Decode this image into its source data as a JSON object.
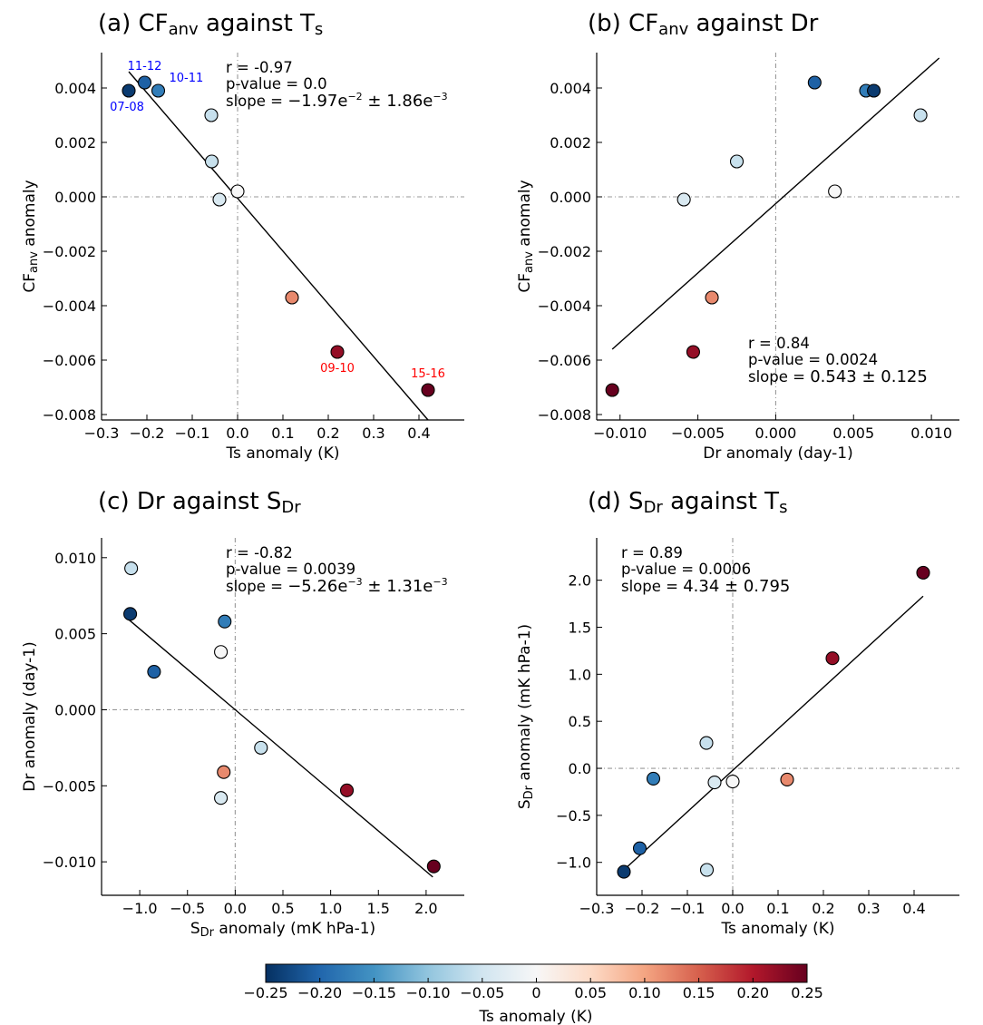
{
  "colorbar": {
    "label": "Ts anomaly (K)",
    "ticks": [
      "−0.25",
      "−0.20",
      "−0.15",
      "−0.10",
      "−0.05",
      "0",
      "0.05",
      "0.10",
      "0.15",
      "0.20",
      "0.25"
    ],
    "range": [
      -0.25,
      0.25
    ],
    "colormap": [
      "#053061",
      "#2166ac",
      "#4393c3",
      "#92c5de",
      "#d1e5f0",
      "#f7f7f7",
      "#fddbc7",
      "#f4a582",
      "#d6604d",
      "#b2182b",
      "#67001f"
    ]
  },
  "chart_data": [
    {
      "type": "scatter",
      "title_parts": [
        "(a) CF",
        "anv",
        " against T",
        "s"
      ],
      "xlabel_parts": [
        "Ts anomaly (K)"
      ],
      "ylabel_parts": [
        "CF",
        "anv",
        " anomaly"
      ],
      "xlim": [
        -0.3,
        0.5
      ],
      "ylim": [
        -0.0082,
        0.0053
      ],
      "xticks": [
        -0.3,
        -0.2,
        -0.1,
        0.0,
        0.1,
        0.2,
        0.3,
        0.4
      ],
      "xtick_labels": [
        "−0.3",
        "−0.2",
        "−0.1",
        "0.0",
        "0.1",
        "0.2",
        "0.3",
        "0.4"
      ],
      "yticks": [
        -0.008,
        -0.006,
        -0.004,
        -0.002,
        0.0,
        0.002,
        0.004
      ],
      "ytick_labels": [
        "−0.008",
        "−0.006",
        "−0.004",
        "−0.002",
        "0.000",
        "0.002",
        "0.004"
      ],
      "stats": {
        "r": "r = -0.97",
        "p": "p-value = 0.0",
        "slope_label": "slope = ",
        "slope_mantissa": "−1.97e",
        "slope_exp": "−2",
        "slope_err_mantissa": " ± 1.86e",
        "slope_err_exp": "−3",
        "position": "top-center"
      },
      "fit": {
        "x": [
          -0.24,
          0.42
        ],
        "y": [
          0.0046,
          -0.0082
        ]
      },
      "points": [
        {
          "x": -0.24,
          "y": 0.0039,
          "c": -0.24,
          "label": "07-08",
          "label_color": "#0000ff",
          "label_pos": "below-left"
        },
        {
          "x": -0.205,
          "y": 0.0042,
          "c": -0.205,
          "label": "11-12",
          "label_color": "#0000ff",
          "label_pos": "above"
        },
        {
          "x": -0.175,
          "y": 0.0039,
          "c": -0.175,
          "label": "10-11",
          "label_color": "#0000ff",
          "label_pos": "above-right"
        },
        {
          "x": -0.058,
          "y": 0.003,
          "c": -0.058
        },
        {
          "x": -0.057,
          "y": 0.0013,
          "c": -0.057
        },
        {
          "x": -0.04,
          "y": -0.0001,
          "c": -0.04
        },
        {
          "x": 0.0,
          "y": 0.0002,
          "c": 0.0
        },
        {
          "x": 0.12,
          "y": -0.0037,
          "c": 0.12
        },
        {
          "x": 0.22,
          "y": -0.0057,
          "c": 0.22,
          "label": "09-10",
          "label_color": "#ff0000",
          "label_pos": "below"
        },
        {
          "x": 0.42,
          "y": -0.0071,
          "c": 0.42,
          "label": "15-16",
          "label_color": "#ff0000",
          "label_pos": "above"
        }
      ]
    },
    {
      "type": "scatter",
      "title_parts": [
        "(b) CF",
        "anv",
        " against Dr"
      ],
      "xlabel_parts": [
        "Dr anomaly (day-1)"
      ],
      "ylabel_parts": [
        "CF",
        "anv",
        " anomaly"
      ],
      "xlim": [
        -0.0115,
        0.0118
      ],
      "ylim": [
        -0.0082,
        0.0053
      ],
      "xticks": [
        -0.01,
        -0.005,
        0.0,
        0.005,
        0.01
      ],
      "xtick_labels": [
        "−0.010",
        "−0.005",
        "0.000",
        "0.005",
        "0.010"
      ],
      "yticks": [
        -0.008,
        -0.006,
        -0.004,
        -0.002,
        0.0,
        0.002,
        0.004
      ],
      "ytick_labels": [
        "−0.008",
        "−0.006",
        "−0.004",
        "−0.002",
        "0.000",
        "0.002",
        "0.004"
      ],
      "stats": {
        "r": "r = 0.84",
        "p": "p-value = 0.0024",
        "slope_label": "slope = ",
        "slope_value": "0.543 ± 0.125",
        "position": "bottom-right"
      },
      "fit": {
        "x": [
          -0.0105,
          0.0105
        ],
        "y": [
          -0.0056,
          0.0051
        ]
      },
      "points": [
        {
          "x": -0.0105,
          "y": -0.0071,
          "c": 0.42
        },
        {
          "x": -0.0059,
          "y": -0.0001,
          "c": -0.04
        },
        {
          "x": -0.0053,
          "y": -0.0057,
          "c": 0.22
        },
        {
          "x": -0.0041,
          "y": -0.0037,
          "c": 0.12
        },
        {
          "x": -0.0025,
          "y": 0.0013,
          "c": -0.057
        },
        {
          "x": 0.0025,
          "y": 0.0042,
          "c": -0.205
        },
        {
          "x": 0.0038,
          "y": 0.0002,
          "c": 0.0
        },
        {
          "x": 0.0058,
          "y": 0.0039,
          "c": -0.175
        },
        {
          "x": 0.0063,
          "y": 0.0039,
          "c": -0.24
        },
        {
          "x": 0.0093,
          "y": 0.003,
          "c": -0.058
        }
      ]
    },
    {
      "type": "scatter",
      "title_parts": [
        "(c) Dr against S",
        "Dr"
      ],
      "xlabel_parts": [
        "S",
        "Dr",
        " anomaly (mK hPa-1)"
      ],
      "ylabel_parts": [
        "Dr anomaly (day-1)"
      ],
      "xlim": [
        -1.4,
        2.4
      ],
      "ylim": [
        -0.0122,
        0.0113
      ],
      "xticks": [
        -1.0,
        -0.5,
        0.0,
        0.5,
        1.0,
        1.5,
        2.0
      ],
      "xtick_labels": [
        "−1.0",
        "−0.5",
        "0.0",
        "0.5",
        "1.0",
        "1.5",
        "2.0"
      ],
      "yticks": [
        -0.01,
        -0.005,
        0.0,
        0.005,
        0.01
      ],
      "ytick_labels": [
        "−0.010",
        "−0.005",
        "0.000",
        "0.005",
        "0.010"
      ],
      "stats": {
        "r": "r = -0.82",
        "p": "p-value = 0.0039",
        "slope_label": "slope = ",
        "slope_mantissa": "−5.26e",
        "slope_exp": "−3",
        "slope_err_mantissa": " ± 1.31e",
        "slope_err_exp": "−3",
        "position": "top-center"
      },
      "fit": {
        "x": [
          -1.11,
          2.07
        ],
        "y": [
          0.0059,
          -0.011
        ]
      },
      "points": [
        {
          "x": -1.09,
          "y": 0.0093,
          "c": -0.058
        },
        {
          "x": -1.1,
          "y": 0.0063,
          "c": -0.24
        },
        {
          "x": -0.85,
          "y": 0.0025,
          "c": -0.205
        },
        {
          "x": -0.11,
          "y": 0.0058,
          "c": -0.175
        },
        {
          "x": -0.15,
          "y": 0.0038,
          "c": 0.0
        },
        {
          "x": -0.12,
          "y": -0.0041,
          "c": 0.12
        },
        {
          "x": -0.15,
          "y": -0.0058,
          "c": -0.04
        },
        {
          "x": 0.27,
          "y": -0.0025,
          "c": -0.057
        },
        {
          "x": 1.17,
          "y": -0.0053,
          "c": 0.22
        },
        {
          "x": 2.08,
          "y": -0.0103,
          "c": 0.42
        }
      ]
    },
    {
      "type": "scatter",
      "title_parts": [
        "(d) S",
        "Dr",
        " against T",
        "s"
      ],
      "xlabel_parts": [
        "Ts anomaly (K)"
      ],
      "ylabel_parts": [
        "S",
        "Dr",
        " anomaly (mK hPa-1)"
      ],
      "xlim": [
        -0.3,
        0.5
      ],
      "ylim": [
        -1.35,
        2.45
      ],
      "xticks": [
        -0.3,
        -0.2,
        -0.1,
        0.0,
        0.1,
        0.2,
        0.3,
        0.4
      ],
      "xtick_labels": [
        "−0.3",
        "−0.2",
        "−0.1",
        "0.0",
        "0.1",
        "0.2",
        "0.3",
        "0.4"
      ],
      "yticks": [
        -1.0,
        -0.5,
        0.0,
        0.5,
        1.0,
        1.5,
        2.0
      ],
      "ytick_labels": [
        "−1.0",
        "−0.5",
        "0.0",
        "0.5",
        "1.0",
        "1.5",
        "2.0"
      ],
      "stats": {
        "r": "r = 0.89",
        "p": "p-value = 0.0006",
        "slope_label": "slope = ",
        "slope_value": "4.34 ± 0.795",
        "position": "top-left"
      },
      "fit": {
        "x": [
          -0.24,
          0.42
        ],
        "y": [
          -1.08,
          1.83
        ]
      },
      "points": [
        {
          "x": -0.24,
          "y": -1.1,
          "c": -0.24
        },
        {
          "x": -0.205,
          "y": -0.85,
          "c": -0.205
        },
        {
          "x": -0.175,
          "y": -0.11,
          "c": -0.175
        },
        {
          "x": -0.058,
          "y": 0.27,
          "c": -0.058
        },
        {
          "x": -0.057,
          "y": -1.08,
          "c": -0.057
        },
        {
          "x": -0.04,
          "y": -0.15,
          "c": -0.04
        },
        {
          "x": 0.0,
          "y": -0.14,
          "c": 0.0
        },
        {
          "x": 0.12,
          "y": -0.12,
          "c": 0.12
        },
        {
          "x": 0.22,
          "y": 1.17,
          "c": 0.22
        },
        {
          "x": 0.42,
          "y": 2.08,
          "c": 0.42
        }
      ]
    }
  ]
}
